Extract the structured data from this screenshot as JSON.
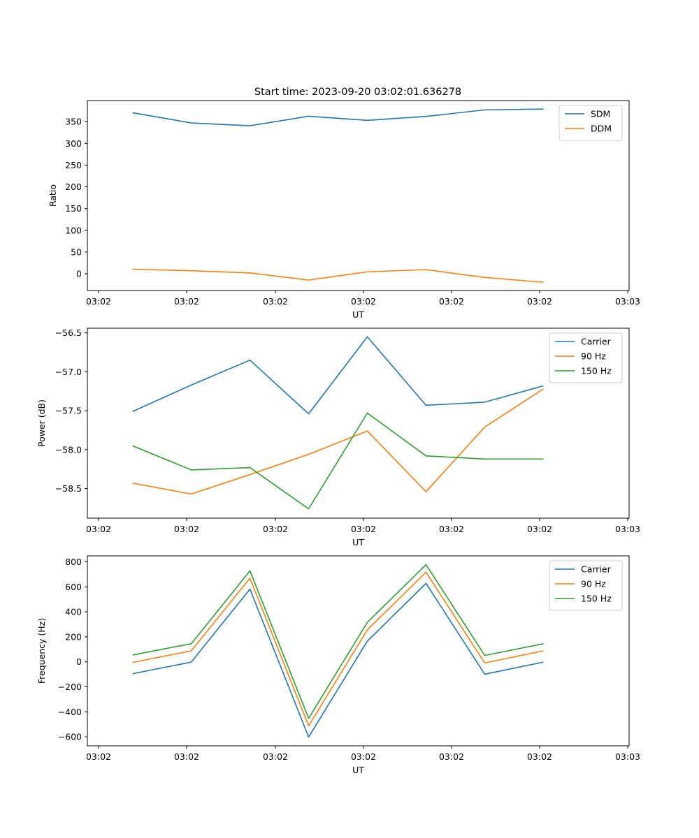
{
  "figure": {
    "suptitle": "Start time: 2023-09-20 03:02:01.636278"
  },
  "colors": {
    "blue": "#1f77b4",
    "orange": "#ff7f0e",
    "green": "#2ca02c"
  },
  "chart_data": [
    {
      "type": "line",
      "xlabel": "UT",
      "ylabel": "Ratio",
      "xtick_labels": [
        "03:02",
        "03:02",
        "03:02",
        "03:02",
        "03:02",
        "03:02",
        "03:02"
      ],
      "xtick_last_label": "03:03",
      "x": [
        1,
        2,
        3,
        4,
        5,
        6,
        7,
        8
      ],
      "xlim": [
        0.23,
        9.46
      ],
      "yticks": [
        0,
        50,
        100,
        150,
        200,
        250,
        300,
        350
      ],
      "ylim": [
        -38.5,
        398.5
      ],
      "legend_position": "upper right",
      "series": [
        {
          "name": "SDM",
          "color": "#1f77b4",
          "values": [
            370.5,
            347,
            340.5,
            362.5,
            353,
            362,
            377,
            379
          ]
        },
        {
          "name": "DDM",
          "color": "#ff7f0e",
          "values": [
            10.5,
            7,
            2,
            -14.5,
            4.5,
            9.5,
            -8.5,
            -19.5
          ]
        }
      ]
    },
    {
      "type": "line",
      "xlabel": "UT",
      "ylabel": "Power (dB)",
      "xtick_labels": [
        "03:02",
        "03:02",
        "03:02",
        "03:02",
        "03:02",
        "03:02",
        "03:02"
      ],
      "xtick_last_label": "03:03",
      "x": [
        1,
        2,
        3,
        4,
        5,
        6,
        7,
        8
      ],
      "xlim": [
        0.23,
        9.46
      ],
      "yticks": [
        -56.5,
        -57.0,
        -57.5,
        -58.0,
        -58.5
      ],
      "ytick_labels": [
        "−56.5",
        "−57.0",
        "−57.5",
        "−58.0",
        "−58.5"
      ],
      "ylim": [
        -58.88,
        -56.44
      ],
      "legend_position": "upper right",
      "series": [
        {
          "name": "Carrier",
          "color": "#1f77b4",
          "values": [
            -57.51,
            -57.17,
            -56.85,
            -57.54,
            -56.55,
            -57.43,
            -57.39,
            -57.18
          ]
        },
        {
          "name": "90 Hz",
          "color": "#ff7f0e",
          "values": [
            -58.43,
            -58.57,
            -58.32,
            -58.06,
            -57.76,
            -58.54,
            -57.71,
            -57.22
          ]
        },
        {
          "name": "150 Hz",
          "color": "#2ca02c",
          "values": [
            -57.95,
            -58.26,
            -58.23,
            -58.76,
            -57.53,
            -58.08,
            -58.12,
            -58.12
          ]
        }
      ]
    },
    {
      "type": "line",
      "xlabel": "UT",
      "ylabel": "Frequency (Hz)",
      "xtick_labels": [
        "03:02",
        "03:02",
        "03:02",
        "03:02",
        "03:02",
        "03:02",
        "03:02"
      ],
      "xtick_last_label": "03:03",
      "x": [
        1,
        2,
        3,
        4,
        5,
        6,
        7,
        8
      ],
      "xlim": [
        0.23,
        9.46
      ],
      "yticks": [
        -600,
        -400,
        -200,
        0,
        200,
        400,
        600,
        800
      ],
      "ytick_labels": [
        "−600",
        "−400",
        "−200",
        "0",
        "200",
        "400",
        "600",
        "800"
      ],
      "ylim": [
        -672,
        848
      ],
      "legend_position": "upper right",
      "series": [
        {
          "name": "Carrier",
          "color": "#1f77b4",
          "values": [
            -95,
            -2,
            582,
            -602,
            166,
            628,
            -99,
            -2
          ]
        },
        {
          "name": "90 Hz",
          "color": "#ff7f0e",
          "values": [
            -5,
            88,
            670,
            -512,
            256,
            718,
            -9,
            88
          ]
        },
        {
          "name": "150 Hz",
          "color": "#2ca02c",
          "values": [
            55,
            145,
            728,
            -452,
            316,
            778,
            51,
            145
          ]
        }
      ]
    }
  ]
}
